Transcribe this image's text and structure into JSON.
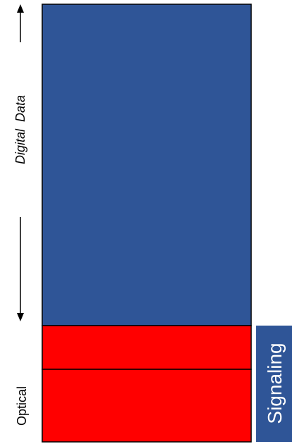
{
  "labels": {
    "digital_data": "Digital  Data",
    "optical": "Optical",
    "signaling": "Signaling"
  },
  "colors": {
    "digital_block": "#2F5597",
    "optical_block": "#FF0000",
    "signaling_box": "#2F5597",
    "signaling_text": "#ffffff",
    "border": "#000000",
    "text": "#000000"
  },
  "icons": {
    "up_arrow": "arrow-up-icon",
    "down_arrow": "arrow-down-icon"
  }
}
